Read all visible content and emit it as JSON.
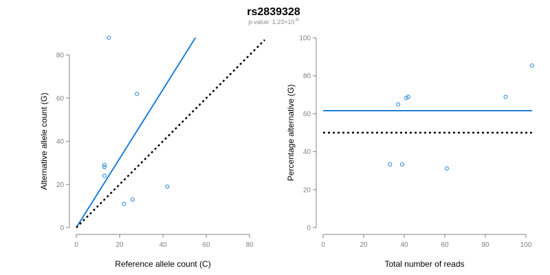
{
  "title": "rs2839328",
  "subtitle": {
    "prefix": "p-value: 1.23×10",
    "exponent": "-6"
  },
  "colors": {
    "series": "#1e7fd8",
    "reference": "#000000",
    "axis": "#808080"
  },
  "chart_data": [
    {
      "type": "scatter",
      "xlabel": "Reference allele count (C)",
      "ylabel": "Alternative allele count (G)",
      "xlim": [
        0,
        80
      ],
      "ylim": [
        0,
        80
      ],
      "xticks": [
        0,
        20,
        40,
        60,
        80
      ],
      "yticks": [
        0,
        20,
        40,
        60,
        80
      ],
      "grid": false,
      "points": [
        {
          "x": 15,
          "y": 88
        },
        {
          "x": 28,
          "y": 62
        },
        {
          "x": 13,
          "y": 29
        },
        {
          "x": 13,
          "y": 28
        },
        {
          "x": 13,
          "y": 24
        },
        {
          "x": 42,
          "y": 19
        },
        {
          "x": 26,
          "y": 13
        },
        {
          "x": 22,
          "y": 11
        }
      ],
      "lines": [
        {
          "style": "solid",
          "x": [
            0,
            55
          ],
          "y": [
            0,
            88
          ]
        },
        {
          "style": "dotted",
          "x": [
            0,
            87
          ],
          "y": [
            0,
            87
          ]
        }
      ]
    },
    {
      "type": "scatter",
      "xlabel": "Total number of reads",
      "ylabel": "Percentage alternative (G)",
      "xlim": [
        0,
        100
      ],
      "ylim": [
        0,
        100
      ],
      "xticks": [
        0,
        20,
        40,
        60,
        80,
        100
      ],
      "yticks": [
        0,
        20,
        40,
        60,
        80,
        100
      ],
      "grid": false,
      "points": [
        {
          "x": 103,
          "y": 85.4
        },
        {
          "x": 90,
          "y": 68.9
        },
        {
          "x": 42,
          "y": 68.9
        },
        {
          "x": 41,
          "y": 68.3
        },
        {
          "x": 37,
          "y": 64.9
        },
        {
          "x": 33,
          "y": 33.3
        },
        {
          "x": 39,
          "y": 33.3
        },
        {
          "x": 61,
          "y": 31.1
        }
      ],
      "lines": [
        {
          "style": "solid",
          "x": [
            0,
            103
          ],
          "y": [
            61.6,
            61.6
          ]
        },
        {
          "style": "dotted",
          "x": [
            0,
            103
          ],
          "y": [
            50,
            50
          ]
        }
      ]
    }
  ]
}
